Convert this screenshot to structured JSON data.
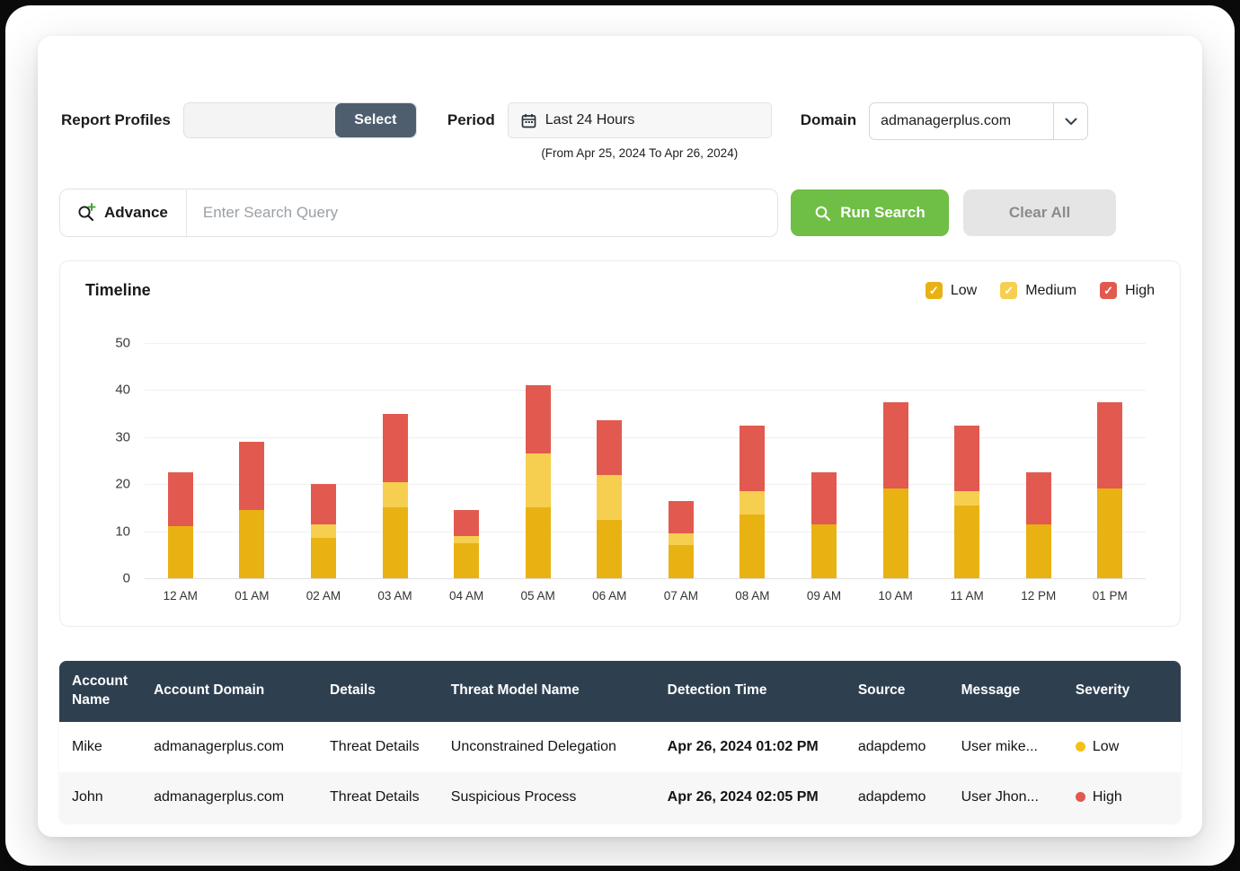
{
  "filters": {
    "report_profiles_label": "Report Profiles",
    "select_button": "Select",
    "period_label": "Period",
    "period_value": "Last 24 Hours",
    "period_caption": "(From Apr 25, 2024 To Apr 26, 2024)",
    "domain_label": "Domain",
    "domain_value": "admanagerplus.com"
  },
  "search": {
    "advance_label": "Advance",
    "placeholder": "Enter Search Query",
    "run_button": "Run Search",
    "clear_button": "Clear All"
  },
  "chart_data": {
    "type": "bar",
    "stacked": true,
    "title": "Timeline",
    "grid": true,
    "legend_position": "top-right",
    "ylim": [
      0,
      50
    ],
    "yticks": [
      0,
      10,
      20,
      30,
      40,
      50
    ],
    "categories": [
      "12 AM",
      "01 AM",
      "02 AM",
      "03 AM",
      "04 AM",
      "05 AM",
      "06 AM",
      "07 AM",
      "08 AM",
      "09 AM",
      "10 AM",
      "11 AM",
      "12 PM",
      "01 PM"
    ],
    "series": [
      {
        "name": "Low",
        "color": "#E9B213",
        "values": [
          11,
          14.5,
          8.5,
          15,
          7.5,
          15,
          12.5,
          7,
          13.5,
          11.5,
          19,
          15.5,
          11.5,
          19
        ]
      },
      {
        "name": "Medium",
        "color": "#F6CF50",
        "values": [
          0,
          0,
          3,
          5.5,
          1.5,
          11.5,
          9.5,
          2.5,
          5,
          0,
          0,
          3,
          0,
          0
        ]
      },
      {
        "name": "High",
        "color": "#E25A4F",
        "values": [
          11.5,
          14.5,
          8.5,
          14.5,
          5.5,
          14.5,
          11.5,
          7,
          14,
          11,
          18.5,
          14,
          11,
          18.5
        ]
      }
    ]
  },
  "table": {
    "columns": [
      "Account Name",
      "Account Domain",
      "Details",
      "Threat Model Name",
      "Detection Time",
      "Source",
      "Message",
      "Severity"
    ],
    "rows": [
      {
        "account_name": "Mike",
        "account_domain": "admanagerplus.com",
        "details": "Threat Details",
        "threat_model": "Unconstrained Delegation",
        "detection_time": "Apr 26, 2024 01:02 PM",
        "source": "adapdemo",
        "message": "User mike...",
        "severity": "Low",
        "severity_color": "#F2C117"
      },
      {
        "account_name": "John",
        "account_domain": "admanagerplus.com",
        "details": "Threat Details",
        "threat_model": "Suspicious Process",
        "detection_time": "Apr 26, 2024 02:05 PM",
        "source": "adapdemo",
        "message": "User Jhon...",
        "severity": "High",
        "severity_color": "#E25A4F"
      }
    ]
  }
}
